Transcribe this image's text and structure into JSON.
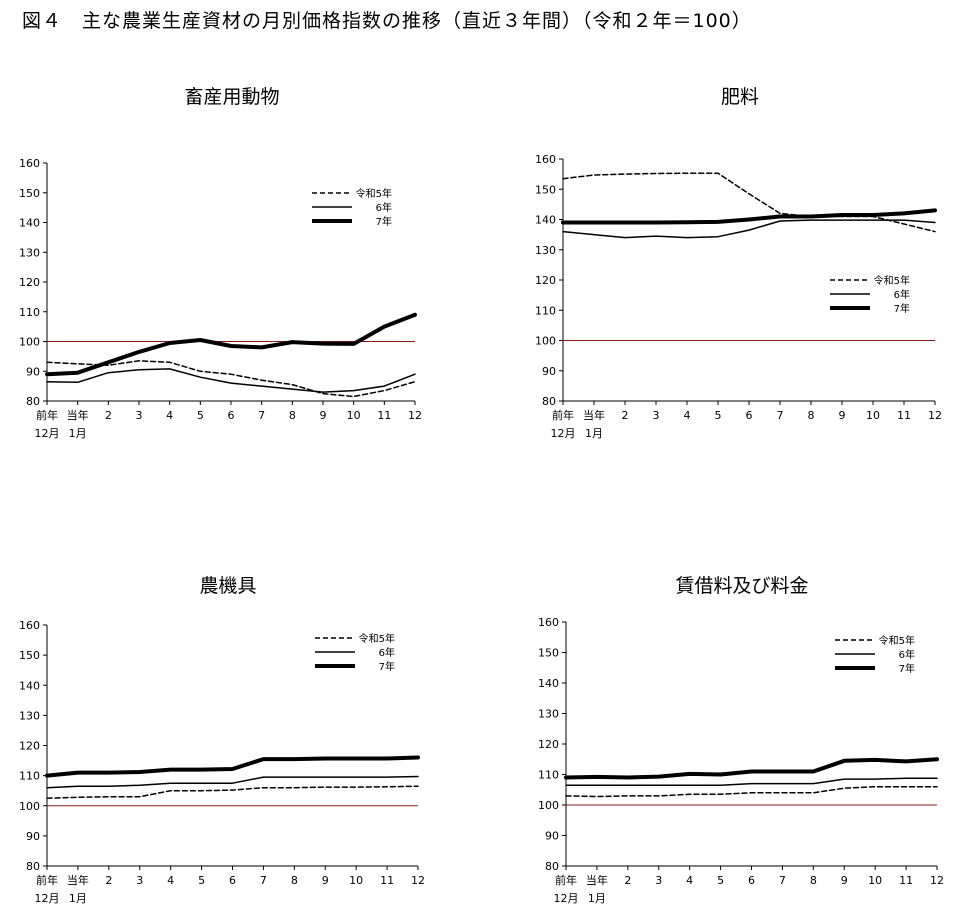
{
  "page_title": "図４　主な農業生産資材の月別価格指数の推移（直近３年間）（令和２年＝100）",
  "x_categories": [
    "前年12月",
    "当年1月",
    "2",
    "3",
    "4",
    "5",
    "6",
    "7",
    "8",
    "9",
    "10",
    "11",
    "12"
  ],
  "x_tick_top": [
    "前年",
    "当年",
    "2",
    "3",
    "4",
    "5",
    "6",
    "7",
    "8",
    "9",
    "10",
    "11",
    "12"
  ],
  "x_tick_bottom": [
    "12月",
    "1月",
    "",
    "",
    "",
    "",
    "",
    "",
    "",
    "",
    "",
    "",
    ""
  ],
  "y_ticks": [
    80,
    90,
    100,
    110,
    120,
    130,
    140,
    150,
    160
  ],
  "reference_line": {
    "value": 100,
    "color": "#8b1a1a"
  },
  "series_styles": [
    {
      "name": "令和5年",
      "style": "dashed",
      "width": 1.5,
      "color": "#000000"
    },
    {
      "name": "6年",
      "style": "solid",
      "width": 1.5,
      "color": "#000000"
    },
    {
      "name": "7年",
      "style": "solid",
      "width": 4,
      "color": "#000000"
    }
  ],
  "chart_data": [
    {
      "type": "line",
      "title": "畜産用動物",
      "ylim": [
        80,
        160
      ],
      "legend_position": "top-right",
      "series": [
        {
          "name": "令和5年",
          "values": [
            93.0,
            92.5,
            92.0,
            93.5,
            93.0,
            90.0,
            89.0,
            87.0,
            85.5,
            82.5,
            81.5,
            83.5,
            86.5
          ]
        },
        {
          "name": "6年",
          "values": [
            86.5,
            86.3,
            89.5,
            90.5,
            90.8,
            88.0,
            86.0,
            85.0,
            84.0,
            83.0,
            83.5,
            85.0,
            89.0
          ]
        },
        {
          "name": "7年",
          "values": [
            89.0,
            89.5,
            93.0,
            96.5,
            99.5,
            100.5,
            98.5,
            98.0,
            99.8,
            99.3,
            99.2,
            105.0,
            109.0
          ]
        }
      ]
    },
    {
      "type": "line",
      "title": "肥料",
      "ylim": [
        80,
        160
      ],
      "legend_position": "right",
      "series": [
        {
          "name": "令和5年",
          "values": [
            153.5,
            154.7,
            155.0,
            155.2,
            155.3,
            155.3,
            148.5,
            142.0,
            141.0,
            141.0,
            141.0,
            138.5,
            136.0
          ]
        },
        {
          "name": "6年",
          "values": [
            136.0,
            135.0,
            134.0,
            134.5,
            134.0,
            134.3,
            136.5,
            139.5,
            139.8,
            139.8,
            139.8,
            139.8,
            139.0
          ]
        },
        {
          "name": "7年",
          "values": [
            139.0,
            139.0,
            139.0,
            139.0,
            139.1,
            139.2,
            140.0,
            141.0,
            141.0,
            141.5,
            141.5,
            142.0,
            143.0
          ]
        }
      ]
    },
    {
      "type": "line",
      "title": "農機具",
      "ylim": [
        80,
        160
      ],
      "legend_position": "top-right",
      "series": [
        {
          "name": "令和5年",
          "values": [
            102.5,
            102.8,
            103.0,
            103.0,
            105.0,
            105.0,
            105.2,
            106.0,
            106.0,
            106.2,
            106.2,
            106.3,
            106.5
          ]
        },
        {
          "name": "6年",
          "values": [
            106.0,
            106.5,
            106.5,
            106.8,
            107.5,
            107.5,
            107.5,
            109.5,
            109.5,
            109.5,
            109.5,
            109.5,
            109.7
          ]
        },
        {
          "name": "7年",
          "values": [
            110.0,
            111.0,
            111.0,
            111.2,
            112.0,
            112.0,
            112.2,
            115.5,
            115.5,
            115.7,
            115.7,
            115.7,
            116.0
          ]
        }
      ]
    },
    {
      "type": "line",
      "title": "賃借料及び料金",
      "ylim": [
        80,
        160
      ],
      "legend_position": "top-right",
      "series": [
        {
          "name": "令和5年",
          "values": [
            103.0,
            102.8,
            103.0,
            103.0,
            103.5,
            103.5,
            104.0,
            104.0,
            104.0,
            105.5,
            106.0,
            106.0,
            106.0
          ]
        },
        {
          "name": "6年",
          "values": [
            106.5,
            106.5,
            106.5,
            106.5,
            106.5,
            106.5,
            107.0,
            107.0,
            107.0,
            108.5,
            108.5,
            108.8,
            108.8
          ]
        },
        {
          "name": "7年",
          "values": [
            109.0,
            109.2,
            109.0,
            109.3,
            110.2,
            110.0,
            111.0,
            111.0,
            111.0,
            114.5,
            114.8,
            114.3,
            115.0
          ]
        }
      ]
    }
  ]
}
